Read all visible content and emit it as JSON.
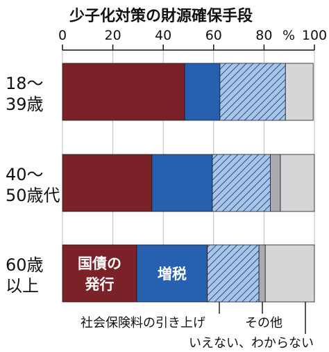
{
  "chart_data": {
    "type": "bar",
    "orientation": "horizontal",
    "stacked": true,
    "title": "少子化対策の財源確保手段",
    "x_unit": "%",
    "xlim": [
      0,
      100
    ],
    "x_ticks": [
      "0",
      "20",
      "40",
      "60",
      "80",
      "100"
    ],
    "categories": [
      [
        "18〜",
        "39歳"
      ],
      [
        "40〜",
        "50歳代"
      ],
      [
        "60歳",
        "以上"
      ]
    ],
    "series": [
      {
        "name": "国債の発行",
        "color": "#7b2128",
        "pattern": "solid",
        "values": [
          48.5,
          35.5,
          29.5
        ]
      },
      {
        "name": "増税",
        "color": "#2860b0",
        "pattern": "solid",
        "values": [
          14.0,
          24.0,
          28.0
        ]
      },
      {
        "name": "社会保険料の引き上げ",
        "color": "#a8c4e6",
        "pattern": "hatched",
        "values": [
          26.0,
          23.0,
          20.5
        ]
      },
      {
        "name": "その他",
        "color": "#a9abae",
        "pattern": "solid",
        "values": [
          0.0,
          4.0,
          2.5
        ]
      },
      {
        "name": "いえない、わからない",
        "color": "#d5d6d8",
        "pattern": "solid",
        "values": [
          11.0,
          13.5,
          19.5
        ]
      }
    ],
    "in_bar_labels": {
      "category_index": 2,
      "labels": [
        [
          "国債の",
          "発行"
        ],
        [
          "増税"
        ]
      ]
    },
    "bottom_labels": [
      "社会保険料の引き上げ",
      "その他",
      "いえない、わからない"
    ],
    "grid": true
  }
}
